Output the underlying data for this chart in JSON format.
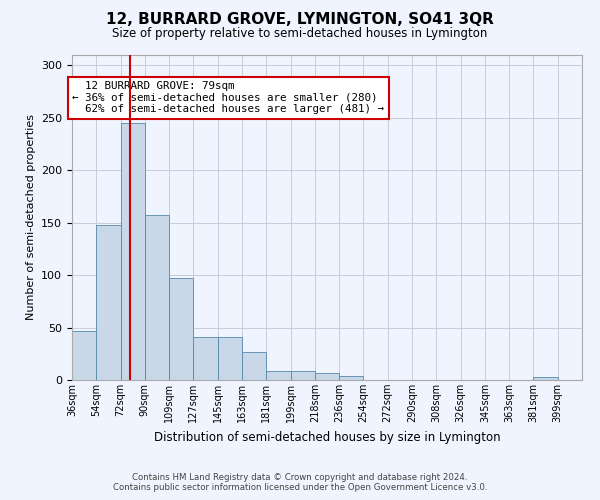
{
  "title": "12, BURRARD GROVE, LYMINGTON, SO41 3QR",
  "subtitle": "Size of property relative to semi-detached houses in Lymington",
  "xlabel": "Distribution of semi-detached houses by size in Lymington",
  "ylabel": "Number of semi-detached properties",
  "bin_labels": [
    "36sqm",
    "54sqm",
    "72sqm",
    "90sqm",
    "109sqm",
    "127sqm",
    "145sqm",
    "163sqm",
    "181sqm",
    "199sqm",
    "218sqm",
    "236sqm",
    "254sqm",
    "272sqm",
    "290sqm",
    "308sqm",
    "326sqm",
    "345sqm",
    "363sqm",
    "381sqm",
    "399sqm"
  ],
  "bar_heights": [
    47,
    148,
    245,
    157,
    97,
    41,
    41,
    27,
    9,
    9,
    7,
    4,
    0,
    0,
    0,
    0,
    0,
    0,
    0,
    3,
    0
  ],
  "bar_color": "#c8d8e8",
  "bar_edge_color": "#5588aa",
  "property_label": "12 BURRARD GROVE: 79sqm",
  "pct_smaller": 36,
  "pct_smaller_count": 280,
  "pct_larger": 62,
  "pct_larger_count": 481,
  "vline_color": "#cc0000",
  "annotation_box_color": "#cc0000",
  "ylim": [
    0,
    310
  ],
  "yticks": [
    0,
    50,
    100,
    150,
    200,
    250,
    300
  ],
  "grid_color": "#c8ccd8",
  "background_color": "#f0f4ff",
  "footer1": "Contains HM Land Registry data © Crown copyright and database right 2024.",
  "footer2": "Contains public sector information licensed under the Open Government Licence v3.0."
}
